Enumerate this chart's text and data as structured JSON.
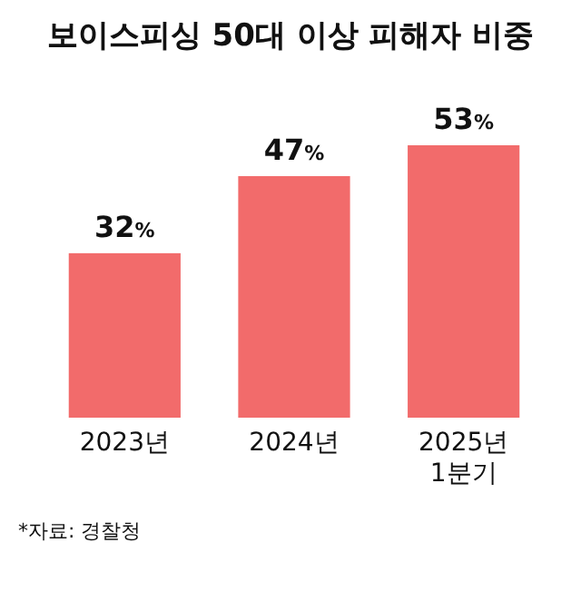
{
  "chart_data": {
    "type": "bar",
    "title": "보이스피싱 50대 이상 피해자 비중",
    "categories": [
      "2023년",
      "2024년",
      "2025년\n1분기"
    ],
    "values": [
      32,
      47,
      53
    ],
    "value_labels": [
      "32%",
      "47%",
      "53%"
    ],
    "color": "#f26b6b",
    "annotations": [
      "*자료: 경찰청"
    ]
  }
}
